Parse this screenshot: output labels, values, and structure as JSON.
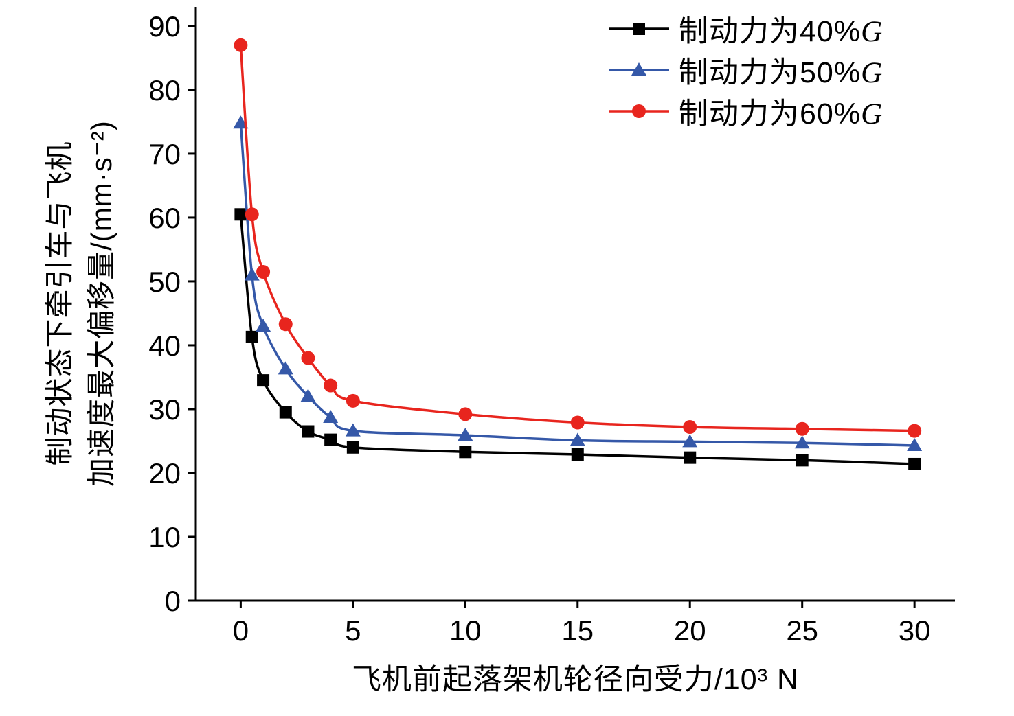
{
  "figure": {
    "background": "#ffffff",
    "y_axis_label_line1": "制动状态下牵引车与飞机",
    "y_axis_label_line2": "加速度最大偏移量/(mm·s⁻²)",
    "x_axis_label": "飞机前起落架机轮径向受力/10³ N"
  },
  "chart_data": {
    "type": "line",
    "title": "",
    "xlabel": "飞机前起落架机轮径向受力/10³ N",
    "ylabel": "制动状态下牵引车与飞机加速度最大偏移量/(mm·s⁻²)",
    "x": [
      0,
      0.5,
      1,
      2,
      3,
      4,
      5,
      10,
      15,
      20,
      25,
      30
    ],
    "series": [
      {
        "name": "制动力为40%G",
        "marker": "square",
        "color": "#000000",
        "values": [
          60.5,
          41.3,
          34.5,
          29.5,
          26.5,
          25.2,
          24.0,
          23.3,
          22.9,
          22.4,
          22.0,
          21.4
        ]
      },
      {
        "name": "制动力为50%G",
        "marker": "triangle",
        "color": "#3558a8",
        "values": [
          74.8,
          51.0,
          43.0,
          36.3,
          32.0,
          28.7,
          26.6,
          25.9,
          25.1,
          24.9,
          24.7,
          24.3
        ]
      },
      {
        "name": "制动力为60%G",
        "marker": "circle",
        "color": "#e8251e",
        "values": [
          87.0,
          60.5,
          51.5,
          43.3,
          38.0,
          33.7,
          31.3,
          29.2,
          27.9,
          27.2,
          26.9,
          26.6
        ]
      }
    ],
    "x_ticks": [
      0,
      5,
      10,
      15,
      20,
      25,
      30
    ],
    "y_ticks": [
      0,
      10,
      20,
      30,
      40,
      50,
      60,
      70,
      80,
      90
    ],
    "xlim": [
      -2,
      31.8
    ],
    "ylim": [
      0,
      93
    ],
    "grid": false,
    "legend_position": "top-right",
    "axis_color": "#000000"
  }
}
